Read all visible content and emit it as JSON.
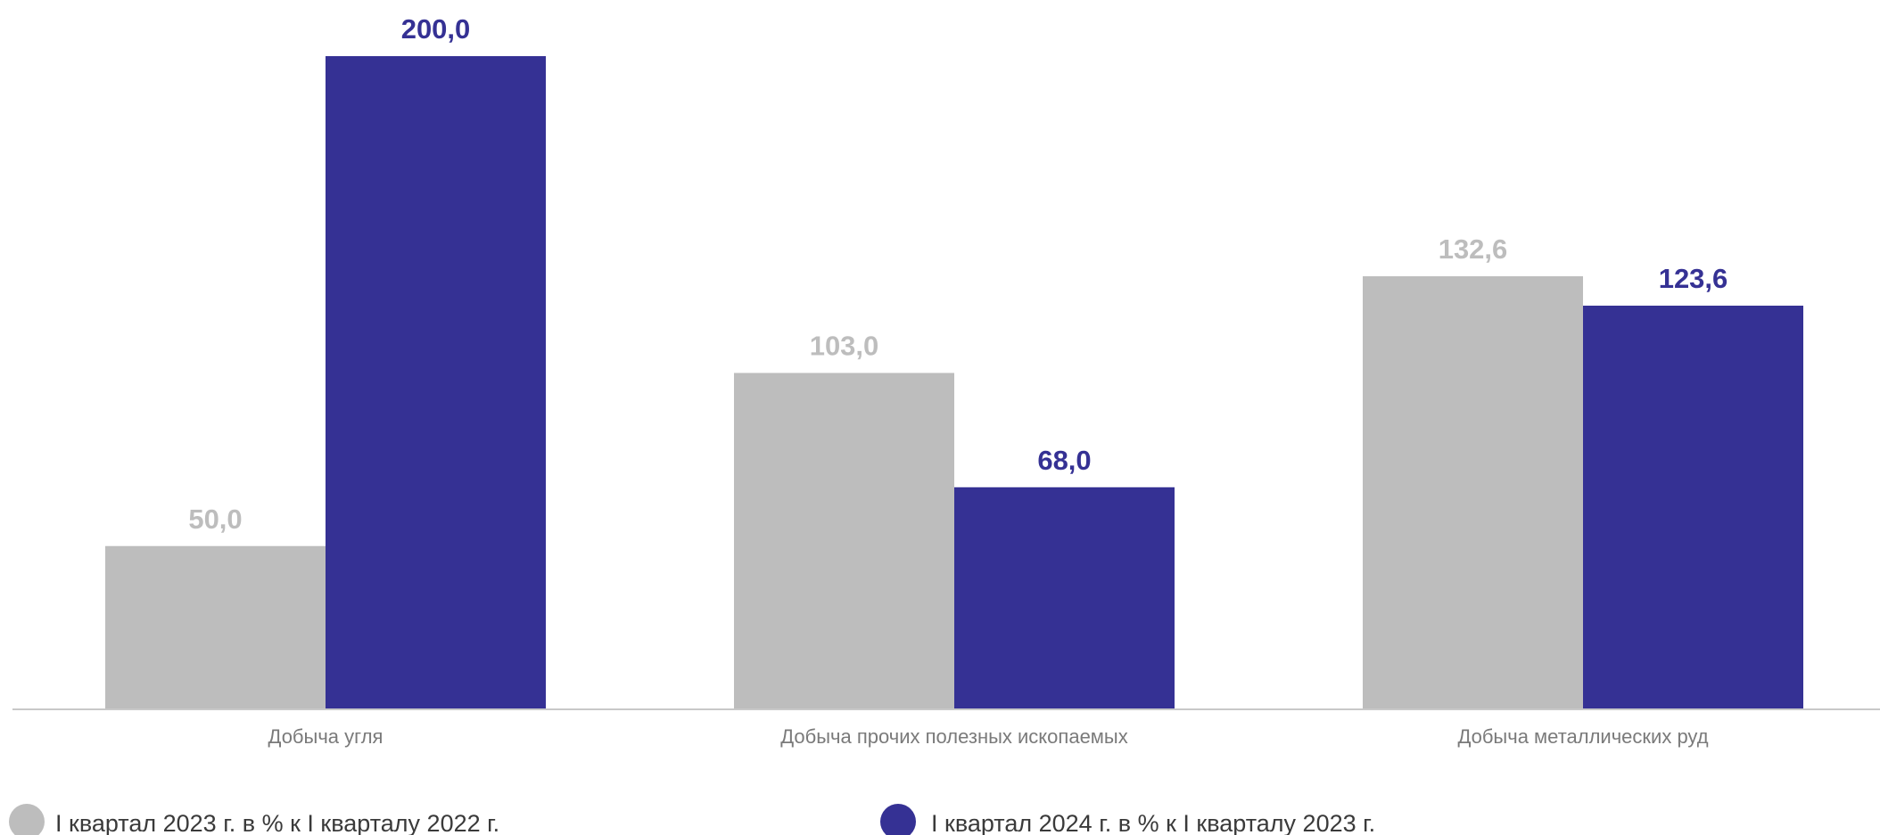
{
  "chart_data": {
    "type": "bar",
    "categories": [
      "Добыча угля",
      "Добыча прочих полезных ископаемых",
      "Добыча металлических руд"
    ],
    "series": [
      {
        "name": "I квартал 2023 г. в % к I кварталу 2022 г.",
        "color": "#bdbdbd",
        "values": [
          50.0,
          103.0,
          132.6
        ],
        "labels": [
          "50,0",
          "103,0",
          "132,6"
        ]
      },
      {
        "name": "I квартал 2024 г. в % к I кварталу 2023 г.",
        "color": "#353194",
        "values": [
          200.0,
          68.0,
          123.6
        ],
        "labels": [
          "200,0",
          "68,0",
          "123,6"
        ]
      }
    ],
    "ylim": [
      0,
      200
    ],
    "grid": false,
    "legend_position": "bottom",
    "axis_color": "#c8c8c8"
  }
}
